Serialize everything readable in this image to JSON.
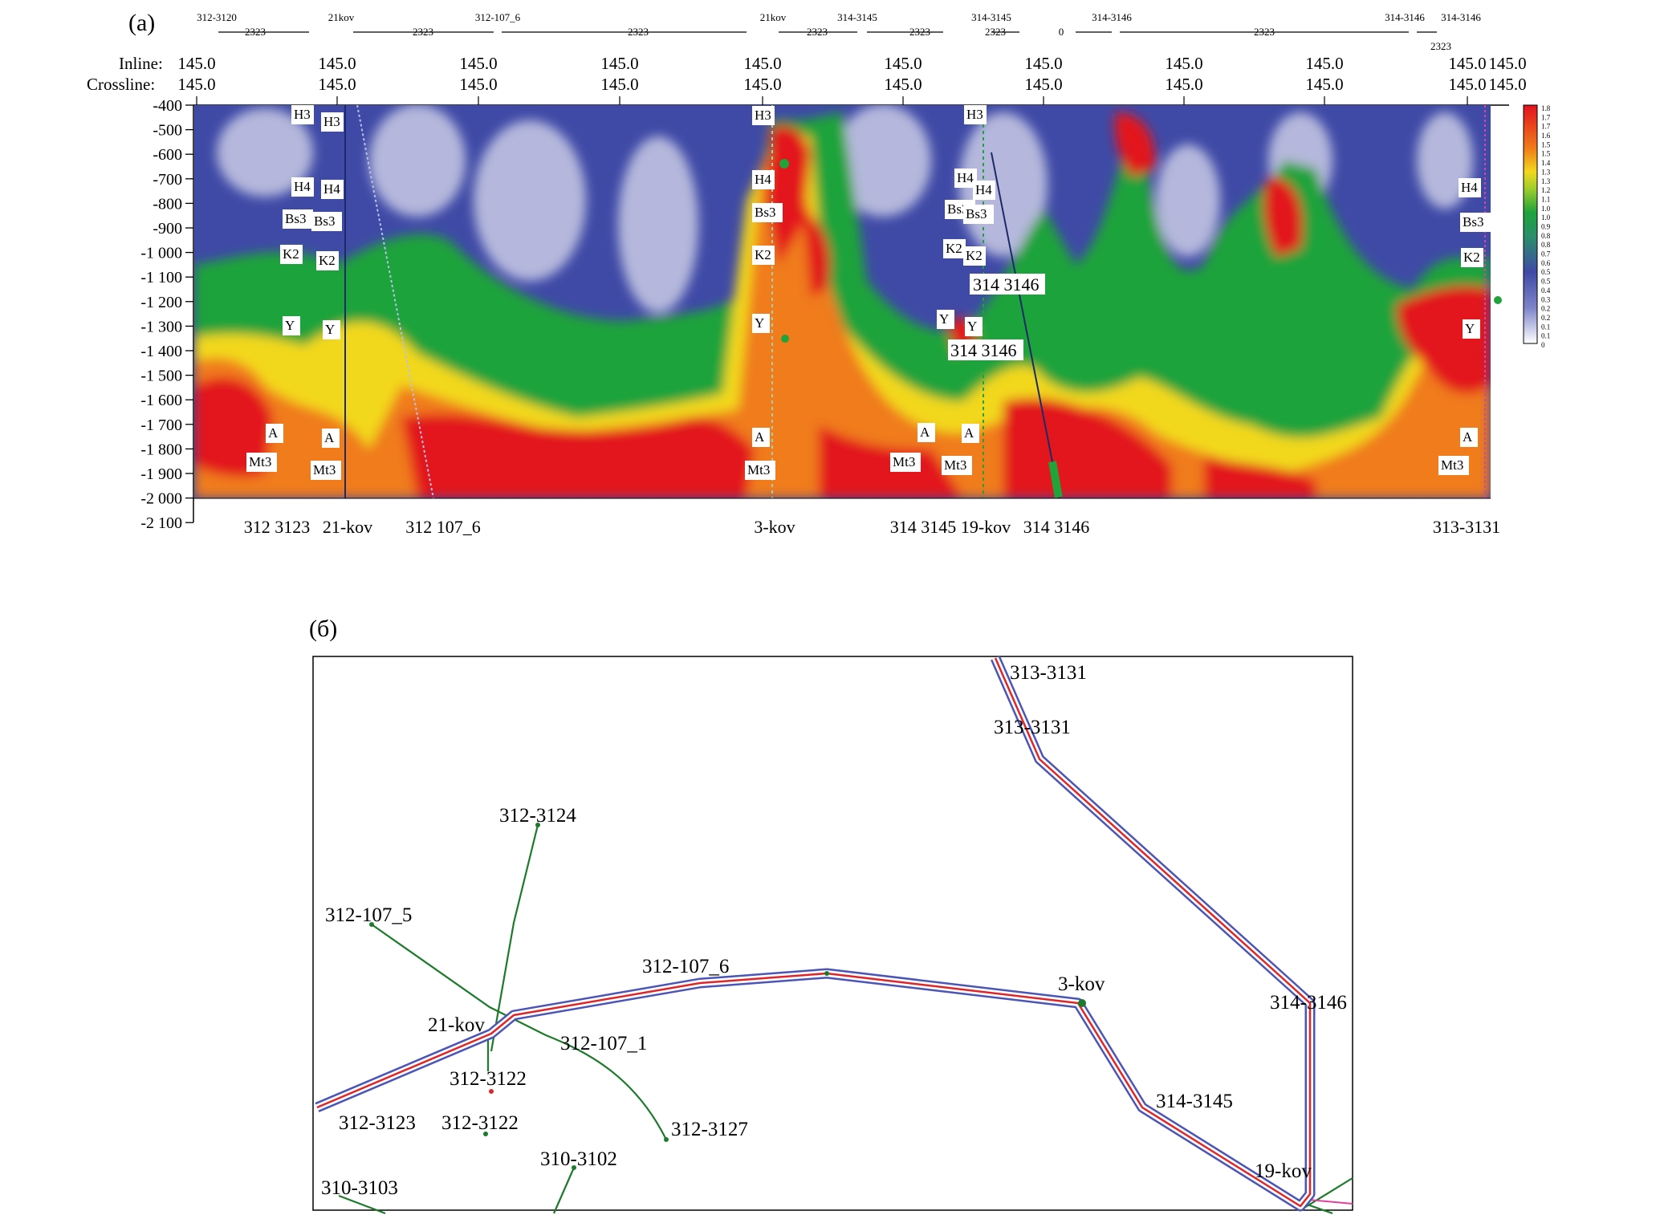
{
  "panel_a": {
    "label": "(a)",
    "header_rows": {
      "inline_label": "Inline:",
      "crossline_label": "Crossline:",
      "values": [
        "145.0",
        "145.0",
        "145.0",
        "145.0",
        "145.0",
        "145.0",
        "145.0",
        "145.0",
        "145.0",
        "145.0"
      ],
      "last_values": [
        "145.0",
        "145.0"
      ]
    },
    "segments_top": [
      "312-3120",
      "21kov",
      "312-107_6",
      "21kov",
      "314-3145",
      "314-3145",
      "314-3146",
      "314-3146",
      "314-3146"
    ],
    "segment_values": [
      "2323",
      "2323",
      "2323",
      "2323",
      "2323",
      "2323",
      "0",
      "2323",
      "2323"
    ],
    "depth_ticks": [
      "-400",
      "-500",
      "-600",
      "-700",
      "-800",
      "-900",
      "-1 000",
      "-1 100",
      "-1 200",
      "-1 300",
      "-1 400",
      "-1 500",
      "-1 600",
      "-1 700",
      "-1 800",
      "-1 900",
      "-2 000",
      "-2 100"
    ],
    "wells_bottom": [
      "312 3123",
      "21-kov",
      "312 107_6",
      "3-kov",
      "314 3145",
      "19-kov",
      "314 3146",
      "313-3131"
    ],
    "well_labels_inside": [
      "314 3146",
      "314 3146"
    ],
    "horizons": [
      "H3",
      "H4",
      "Bs3",
      "K2",
      "Y",
      "A",
      "Mt3"
    ],
    "colorbar_ticks": [
      "1.8",
      "1.7",
      "1.7",
      "1.6",
      "1.5",
      "1.5",
      "1.4",
      "1.3",
      "1.3",
      "1.2",
      "1.1",
      "1.0",
      "1.0",
      "0.9",
      "0.8",
      "0.8",
      "0.7",
      "0.6",
      "0.5",
      "0.5",
      "0.4",
      "0.3",
      "0.2",
      "0.2",
      "0.1",
      "0.1",
      "0"
    ],
    "colors": {
      "low": "#3f4aa6",
      "pale": "#c9cce6",
      "green": "#1fa33a",
      "yellow": "#f2d81d",
      "orange": "#f07b1a",
      "red": "#e2121e"
    }
  },
  "panel_b": {
    "label": "(б)",
    "well_labels": [
      "313-3131",
      "313-3131",
      "312-3124",
      "312-107_5",
      "312-107_6",
      "3-kov",
      "314-3146",
      "21-kov",
      "312-107_1",
      "312-3122",
      "312-3122",
      "312-3123",
      "312-3127",
      "314-3145",
      "310-3102",
      "310-3103",
      "19-kov"
    ],
    "colors": {
      "profile_outer": "#4b55b8",
      "profile_inner": "#e0252a",
      "wells": "#1c7a2a",
      "pink": "#e2409a"
    }
  }
}
